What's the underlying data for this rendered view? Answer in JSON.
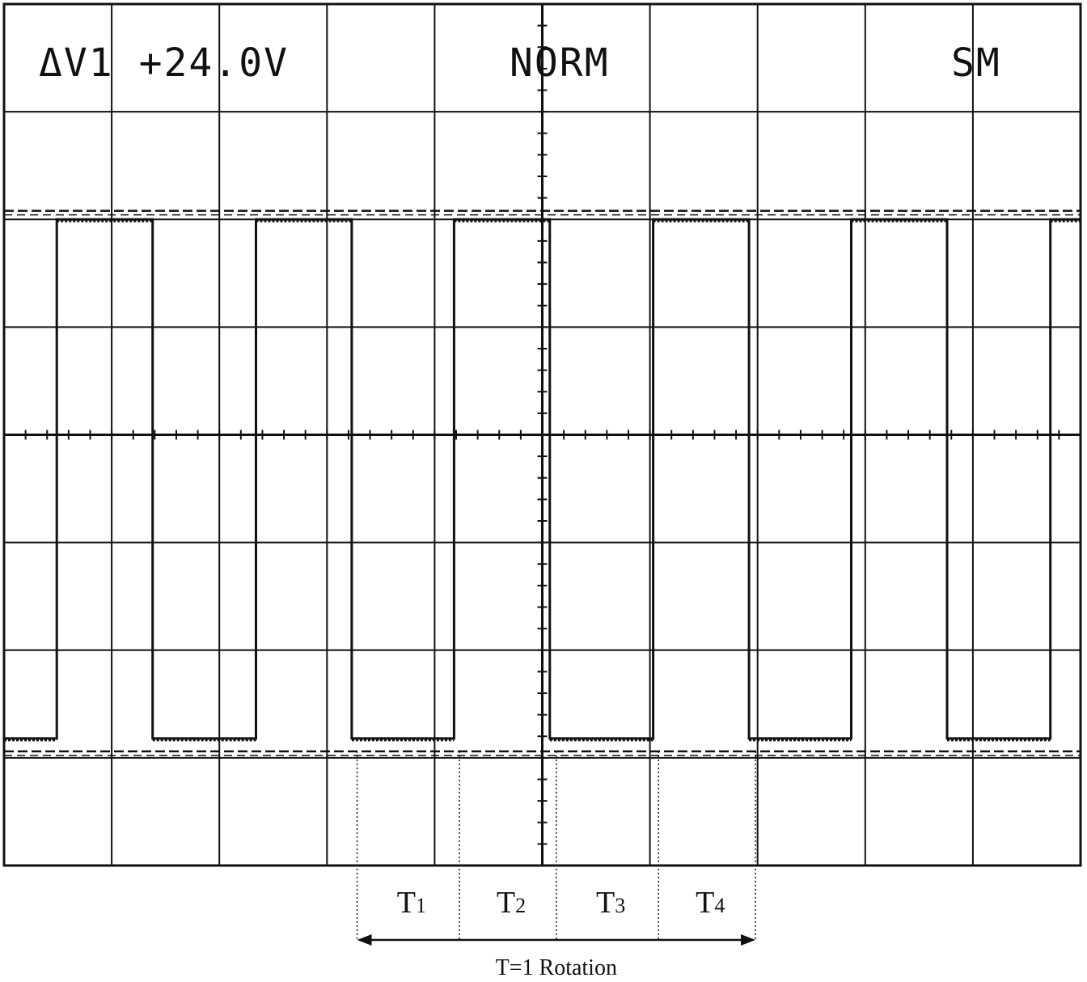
{
  "screen": {
    "readout_left": "ΔV1 +24.0V",
    "readout_center": "NORM",
    "readout_right": "SM"
  },
  "chart_data": {
    "type": "line",
    "title": "",
    "xlabel": "",
    "ylabel": "",
    "xlim": [
      0,
      10
    ],
    "ylim": [
      -4,
      4
    ],
    "grid": true,
    "cursors": [
      {
        "name": "upper cursor",
        "y": 2.08
      },
      {
        "name": "lower cursor",
        "y": -2.94
      }
    ],
    "series": [
      {
        "x": [
          0,
          0.49,
          0.49,
          1.38,
          1.38,
          2.34,
          2.34,
          3.23,
          3.23,
          4.18,
          4.18,
          5.07,
          5.07,
          6.03,
          6.03,
          6.92,
          6.92,
          7.87,
          7.87,
          8.76,
          8.76,
          9.72,
          9.72,
          10
        ],
        "y": [
          -2.82,
          -2.82,
          2.0,
          2.0,
          -2.82,
          -2.82,
          2.0,
          2.0,
          -2.82,
          -2.82,
          2.0,
          2.0,
          -2.82,
          -2.82,
          2.0,
          2.0,
          -2.82,
          -2.82,
          2.0,
          2.0,
          -2.82,
          -2.82,
          2.0,
          2.0
        ]
      }
    ],
    "annotations": {
      "intervals": [
        {
          "main": "T",
          "sub": "1",
          "start": 3.28,
          "end": 4.23
        },
        {
          "main": "T",
          "sub": "2",
          "start": 4.23,
          "end": 5.13
        },
        {
          "main": "T",
          "sub": "3",
          "start": 5.13,
          "end": 6.08
        },
        {
          "main": "T",
          "sub": "4",
          "start": 6.08,
          "end": 6.98
        }
      ],
      "period_label": "T=1 Rotation",
      "period_start": 3.28,
      "period_end": 6.98
    }
  }
}
